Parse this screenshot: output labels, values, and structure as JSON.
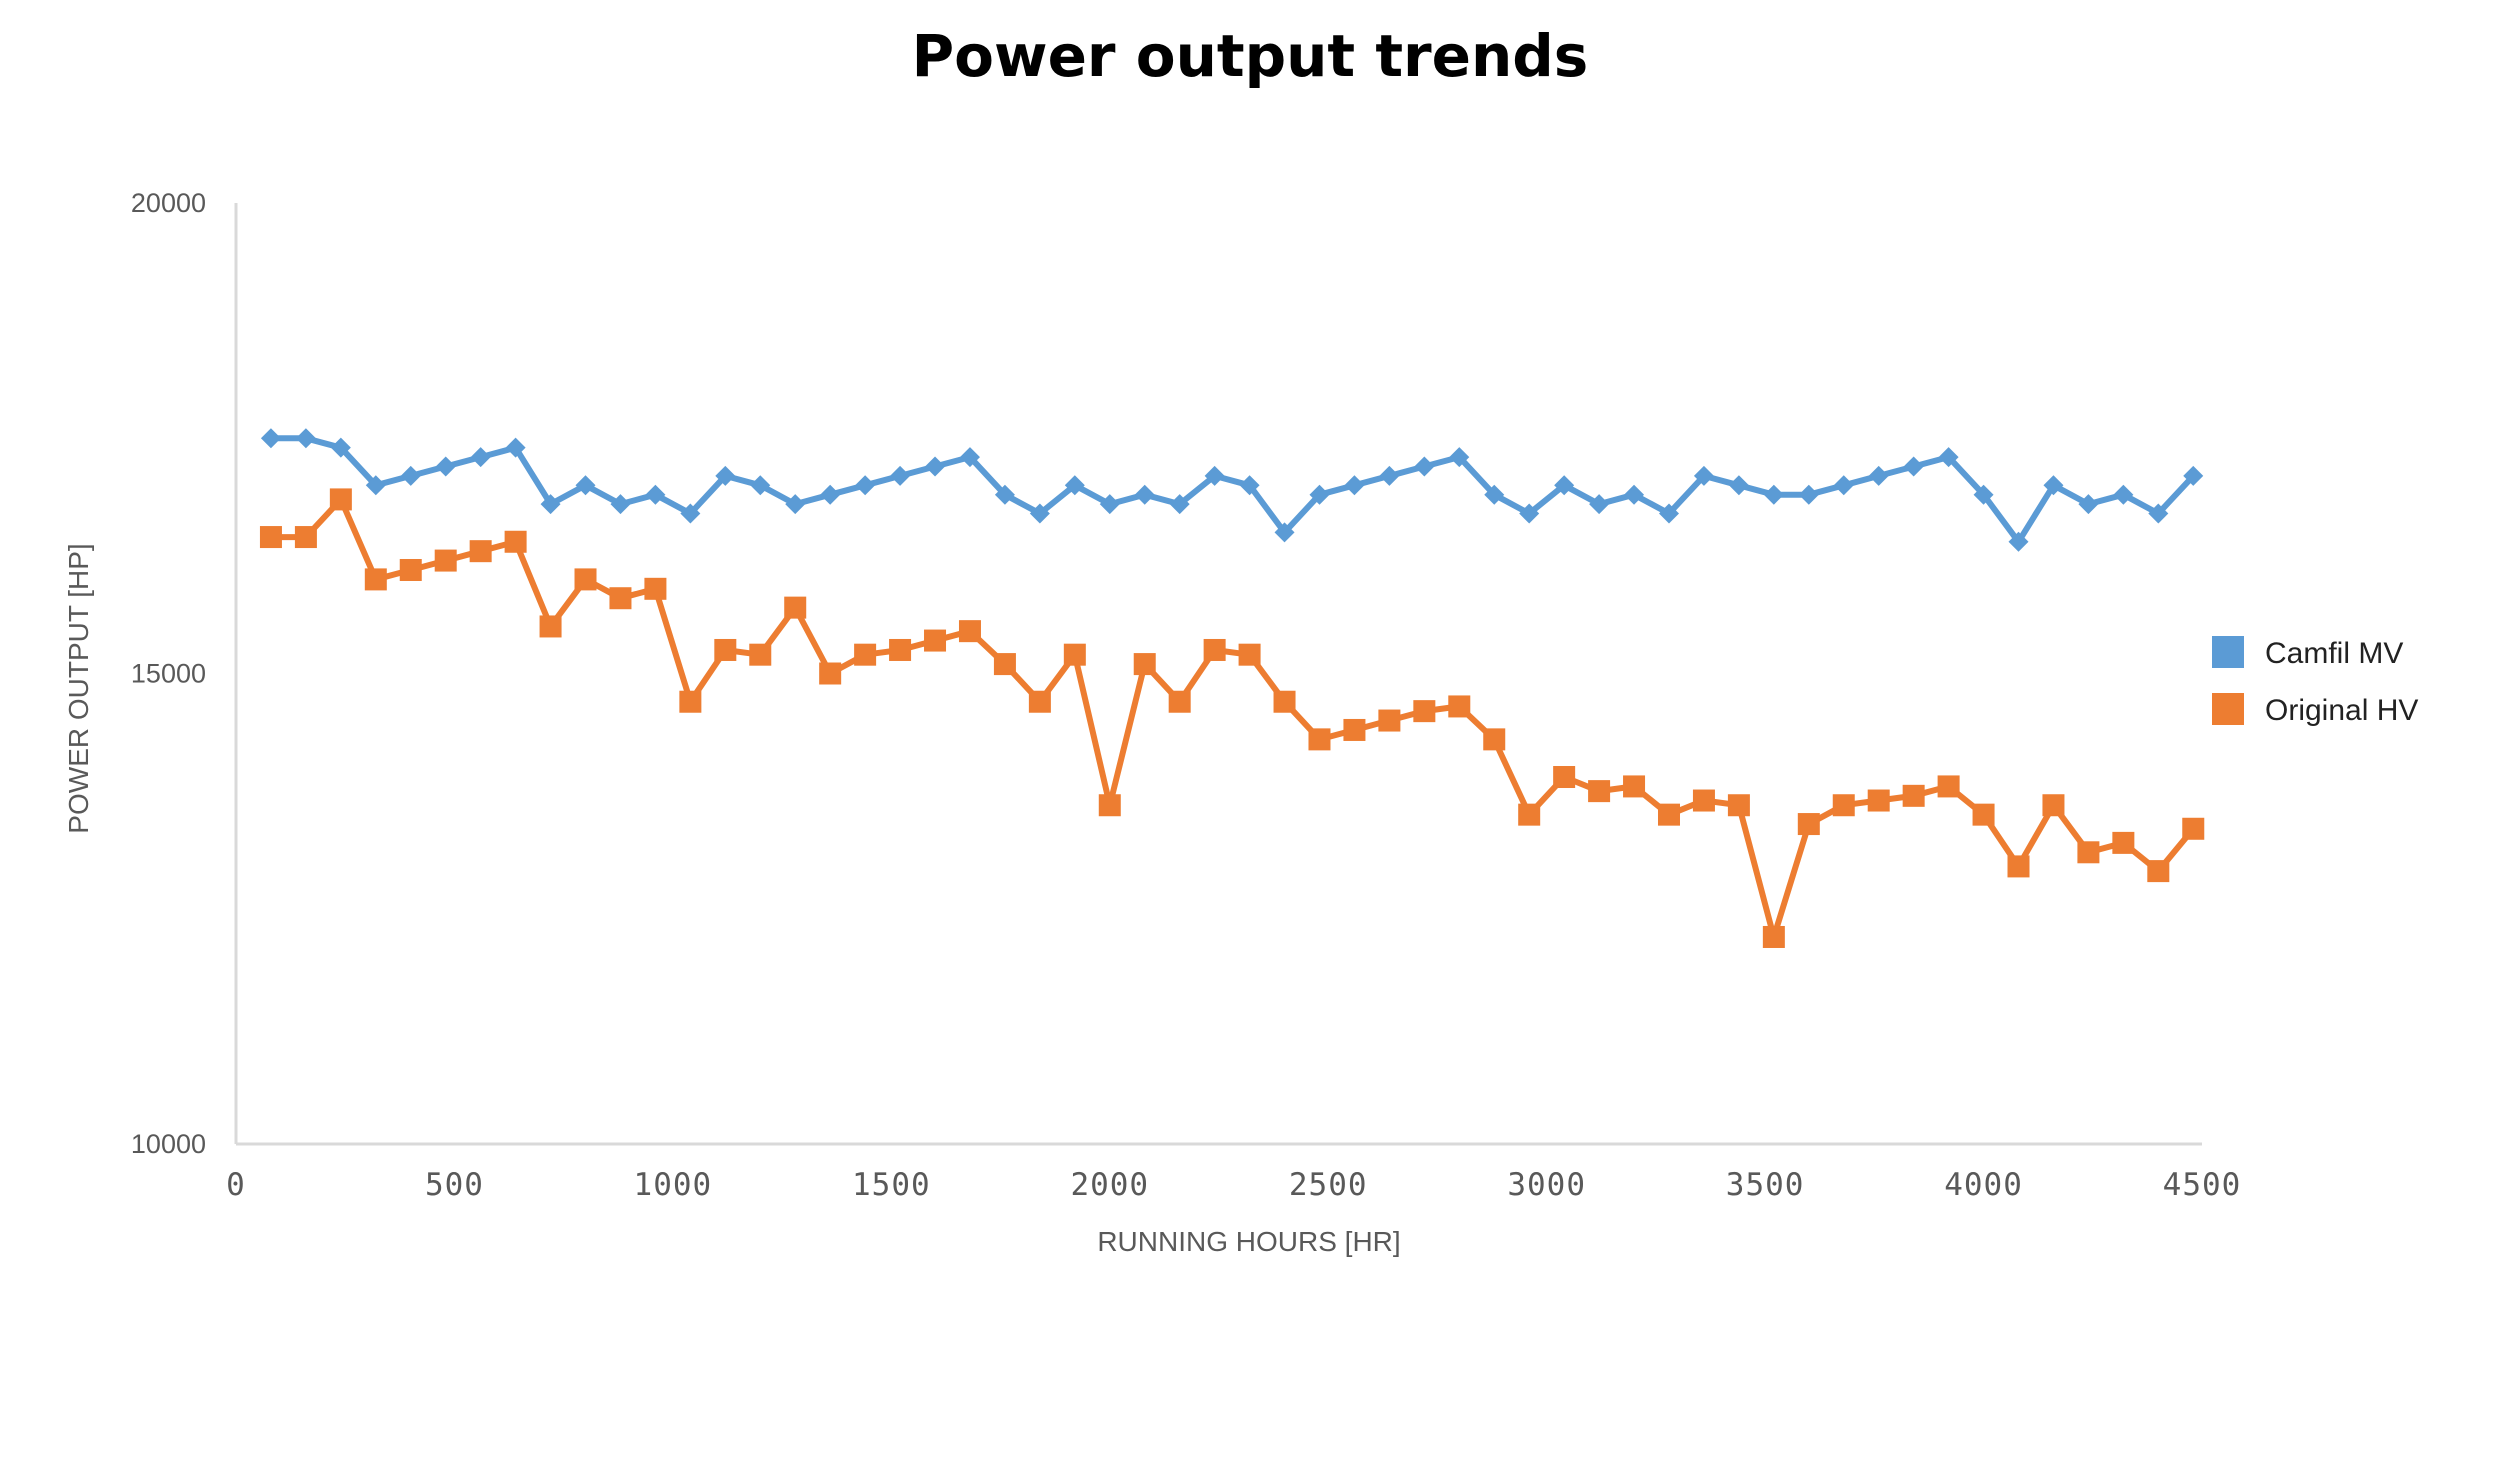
{
  "chart_data": {
    "type": "line",
    "title": "Power output trends",
    "xlabel": "RUNNING HOURS [HR]",
    "ylabel": "POWER OUTPUT [HP]",
    "xlim": [
      0,
      4500
    ],
    "ylim": [
      10000,
      20000
    ],
    "x_ticks": [
      0,
      500,
      1000,
      1500,
      2000,
      2500,
      3000,
      3500,
      4000,
      4500
    ],
    "y_ticks": [
      10000,
      15000,
      20000
    ],
    "legend_position": "right",
    "x": [
      80,
      160,
      240,
      320,
      400,
      480,
      560,
      640,
      720,
      800,
      880,
      960,
      1040,
      1120,
      1200,
      1280,
      1360,
      1440,
      1520,
      1600,
      1680,
      1760,
      1840,
      1920,
      2000,
      2080,
      2160,
      2240,
      2320,
      2400,
      2480,
      2560,
      2640,
      2720,
      2800,
      2880,
      2960,
      3040,
      3120,
      3200,
      3280,
      3360,
      3440,
      3520,
      3600,
      3680,
      3760,
      3840,
      3920,
      4000,
      4080,
      4160,
      4240,
      4320,
      4400,
      4480
    ],
    "series": [
      {
        "name": "Camfil MV",
        "color": "#5B9BD5",
        "marker": "diamond",
        "values": [
          17500,
          17500,
          17400,
          17000,
          17100,
          17200,
          17300,
          17400,
          16800,
          17000,
          16800,
          16900,
          16700,
          17100,
          17000,
          16800,
          16900,
          17000,
          17100,
          17200,
          17300,
          16900,
          16700,
          17000,
          16800,
          16900,
          16800,
          17100,
          17000,
          16500,
          16900,
          17000,
          17100,
          17200,
          17300,
          16900,
          16700,
          17000,
          16800,
          16900,
          16700,
          17100,
          17000,
          16900,
          16900,
          17000,
          17100,
          17200,
          17300,
          16900,
          16400,
          17000,
          16800,
          16900,
          16700,
          17100
        ]
      },
      {
        "name": "Original HV",
        "color": "#ED7D31",
        "marker": "square",
        "values": [
          16450,
          16450,
          16850,
          16000,
          16100,
          16200,
          16300,
          16400,
          15500,
          16000,
          15800,
          15900,
          14700,
          15250,
          15200,
          15700,
          15000,
          15200,
          15250,
          15350,
          15450,
          15100,
          14700,
          15200,
          13600,
          15100,
          14700,
          15250,
          15200,
          14700,
          14300,
          14400,
          14500,
          14600,
          14650,
          14300,
          13500,
          13900,
          13750,
          13800,
          13500,
          13650,
          13600,
          12200,
          13400,
          13600,
          13650,
          13700,
          13800,
          13500,
          12950,
          13600,
          13100,
          13200,
          12900,
          13350
        ]
      }
    ]
  }
}
